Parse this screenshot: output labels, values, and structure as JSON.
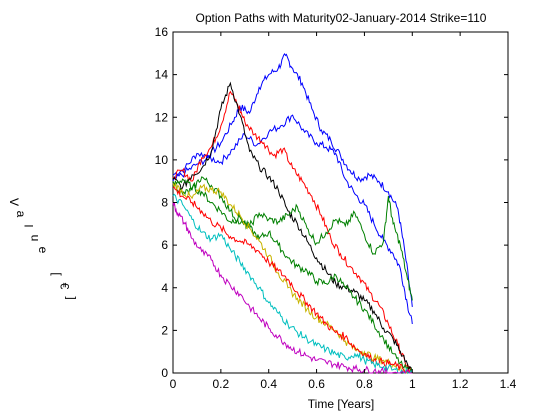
{
  "chart_data": {
    "type": "line",
    "title": "Option Paths with Maturity02-January-2014 Strike=110",
    "xlabel": "Time [Years]",
    "ylabel": "Value [€]",
    "xlim": [
      0,
      1.4
    ],
    "ylim": [
      0,
      16
    ],
    "x_ticks": [
      "0",
      "0.2",
      "0.4",
      "0.6",
      "0.8",
      "1",
      "1.2",
      "1.4"
    ],
    "y_ticks": [
      "0",
      "2",
      "4",
      "6",
      "8",
      "10",
      "12",
      "14",
      "16"
    ],
    "grid": false,
    "series": [
      {
        "color": "#0000ff",
        "points": [
          [
            0,
            9.3
          ],
          [
            0.05,
            9.6
          ],
          [
            0.1,
            10.3
          ],
          [
            0.15,
            10.2
          ],
          [
            0.2,
            10.8
          ],
          [
            0.25,
            11.8
          ],
          [
            0.28,
            12.5
          ],
          [
            0.32,
            12.2
          ],
          [
            0.36,
            13.4
          ],
          [
            0.4,
            14.0
          ],
          [
            0.44,
            14.3
          ],
          [
            0.47,
            14.9
          ],
          [
            0.5,
            14.3
          ],
          [
            0.54,
            13.6
          ],
          [
            0.58,
            12.4
          ],
          [
            0.62,
            11.4
          ],
          [
            0.66,
            10.9
          ],
          [
            0.7,
            10.2
          ],
          [
            0.74,
            9.5
          ],
          [
            0.78,
            9.1
          ],
          [
            0.82,
            9.3
          ],
          [
            0.86,
            9.0
          ],
          [
            0.9,
            8.5
          ],
          [
            0.94,
            7.7
          ],
          [
            0.97,
            5.6
          ],
          [
            1.0,
            3.1
          ]
        ]
      },
      {
        "color": "#0000ff",
        "points": [
          [
            0,
            9.0
          ],
          [
            0.05,
            9.4
          ],
          [
            0.1,
            9.8
          ],
          [
            0.15,
            10.1
          ],
          [
            0.2,
            9.9
          ],
          [
            0.25,
            10.5
          ],
          [
            0.3,
            11.2
          ],
          [
            0.35,
            10.7
          ],
          [
            0.4,
            11.3
          ],
          [
            0.45,
            11.6
          ],
          [
            0.5,
            12.1
          ],
          [
            0.55,
            11.3
          ],
          [
            0.6,
            10.8
          ],
          [
            0.64,
            10.6
          ],
          [
            0.68,
            10.3
          ],
          [
            0.72,
            9.1
          ],
          [
            0.76,
            8.4
          ],
          [
            0.8,
            7.9
          ],
          [
            0.84,
            7.0
          ],
          [
            0.88,
            6.2
          ],
          [
            0.92,
            5.6
          ],
          [
            0.95,
            4.9
          ],
          [
            0.98,
            3.2
          ],
          [
            1.0,
            2.3
          ]
        ]
      },
      {
        "color": "#ff0000",
        "points": [
          [
            0,
            9.2
          ],
          [
            0.04,
            9.5
          ],
          [
            0.08,
            9.0
          ],
          [
            0.12,
            10.1
          ],
          [
            0.16,
            10.6
          ],
          [
            0.2,
            11.6
          ],
          [
            0.24,
            13.2
          ],
          [
            0.27,
            12.6
          ],
          [
            0.3,
            11.8
          ],
          [
            0.34,
            11.2
          ],
          [
            0.38,
            10.8
          ],
          [
            0.42,
            10.2
          ],
          [
            0.46,
            10.5
          ],
          [
            0.5,
            9.6
          ],
          [
            0.54,
            9.0
          ],
          [
            0.58,
            8.3
          ],
          [
            0.62,
            7.4
          ],
          [
            0.66,
            6.3
          ],
          [
            0.7,
            5.6
          ],
          [
            0.74,
            5.0
          ],
          [
            0.78,
            4.5
          ],
          [
            0.82,
            3.8
          ],
          [
            0.86,
            3.2
          ],
          [
            0.9,
            2.3
          ],
          [
            0.94,
            1.3
          ],
          [
            0.97,
            0.5
          ],
          [
            1.0,
            0.0
          ]
        ]
      },
      {
        "color": "#000000",
        "points": [
          [
            0,
            9.1
          ],
          [
            0.04,
            8.7
          ],
          [
            0.08,
            9.3
          ],
          [
            0.12,
            9.6
          ],
          [
            0.16,
            10.4
          ],
          [
            0.2,
            12.4
          ],
          [
            0.24,
            13.6
          ],
          [
            0.28,
            12.1
          ],
          [
            0.32,
            10.4
          ],
          [
            0.36,
            9.7
          ],
          [
            0.4,
            9.2
          ],
          [
            0.44,
            8.6
          ],
          [
            0.48,
            7.6
          ],
          [
            0.52,
            7.0
          ],
          [
            0.56,
            6.2
          ],
          [
            0.6,
            5.4
          ],
          [
            0.64,
            4.8
          ],
          [
            0.68,
            4.2
          ],
          [
            0.72,
            4.0
          ],
          [
            0.76,
            3.8
          ],
          [
            0.8,
            3.4
          ],
          [
            0.84,
            2.9
          ],
          [
            0.88,
            2.1
          ],
          [
            0.92,
            1.6
          ],
          [
            0.96,
            0.8
          ],
          [
            1.0,
            0.0
          ]
        ]
      },
      {
        "color": "#008000",
        "points": [
          [
            0,
            8.8
          ],
          [
            0.04,
            9.1
          ],
          [
            0.08,
            8.7
          ],
          [
            0.12,
            8.5
          ],
          [
            0.16,
            8.0
          ],
          [
            0.2,
            7.6
          ],
          [
            0.24,
            7.1
          ],
          [
            0.28,
            7.3
          ],
          [
            0.32,
            6.8
          ],
          [
            0.36,
            6.3
          ],
          [
            0.4,
            6.6
          ],
          [
            0.44,
            6.0
          ],
          [
            0.48,
            5.4
          ],
          [
            0.52,
            5.0
          ],
          [
            0.56,
            4.8
          ],
          [
            0.6,
            4.3
          ],
          [
            0.64,
            4.2
          ],
          [
            0.68,
            4.6
          ],
          [
            0.72,
            4.0
          ],
          [
            0.76,
            3.5
          ],
          [
            0.8,
            3.0
          ],
          [
            0.84,
            2.3
          ],
          [
            0.88,
            1.6
          ],
          [
            0.92,
            0.9
          ],
          [
            0.96,
            0.3
          ],
          [
            1.0,
            0.0
          ]
        ]
      },
      {
        "color": "#008000",
        "points": [
          [
            0,
            9.0
          ],
          [
            0.04,
            8.4
          ],
          [
            0.08,
            8.6
          ],
          [
            0.12,
            9.2
          ],
          [
            0.16,
            8.8
          ],
          [
            0.2,
            8.3
          ],
          [
            0.24,
            7.6
          ],
          [
            0.28,
            7.0
          ],
          [
            0.32,
            6.9
          ],
          [
            0.36,
            7.5
          ],
          [
            0.4,
            7.2
          ],
          [
            0.44,
            7.1
          ],
          [
            0.48,
            7.4
          ],
          [
            0.52,
            7.8
          ],
          [
            0.56,
            6.8
          ],
          [
            0.6,
            6.1
          ],
          [
            0.64,
            6.6
          ],
          [
            0.68,
            7.2
          ],
          [
            0.72,
            6.9
          ],
          [
            0.76,
            7.5
          ],
          [
            0.8,
            6.5
          ],
          [
            0.84,
            5.6
          ],
          [
            0.88,
            6.2
          ],
          [
            0.9,
            8.3
          ],
          [
            0.92,
            7.0
          ],
          [
            0.95,
            6.0
          ],
          [
            0.98,
            4.4
          ],
          [
            1.0,
            3.4
          ]
        ]
      },
      {
        "color": "#c8b400",
        "points": [
          [
            0,
            8.9
          ],
          [
            0.04,
            8.5
          ],
          [
            0.08,
            8.2
          ],
          [
            0.12,
            8.7
          ],
          [
            0.16,
            8.6
          ],
          [
            0.2,
            8.5
          ],
          [
            0.24,
            7.9
          ],
          [
            0.28,
            7.4
          ],
          [
            0.32,
            6.8
          ],
          [
            0.36,
            6.2
          ],
          [
            0.4,
            5.5
          ],
          [
            0.44,
            4.7
          ],
          [
            0.48,
            4.0
          ],
          [
            0.52,
            3.5
          ],
          [
            0.56,
            3.0
          ],
          [
            0.6,
            2.6
          ],
          [
            0.64,
            2.3
          ],
          [
            0.68,
            2.0
          ],
          [
            0.72,
            1.5
          ],
          [
            0.76,
            1.1
          ],
          [
            0.8,
            1.0
          ],
          [
            0.84,
            0.7
          ],
          [
            0.88,
            0.6
          ],
          [
            0.92,
            0.4
          ],
          [
            0.96,
            0.1
          ],
          [
            1.0,
            0.0
          ]
        ]
      },
      {
        "color": "#ff0000",
        "points": [
          [
            0,
            8.7
          ],
          [
            0.04,
            8.3
          ],
          [
            0.08,
            8.0
          ],
          [
            0.12,
            7.6
          ],
          [
            0.16,
            7.1
          ],
          [
            0.2,
            6.8
          ],
          [
            0.24,
            6.4
          ],
          [
            0.28,
            6.2
          ],
          [
            0.32,
            6.0
          ],
          [
            0.36,
            5.7
          ],
          [
            0.4,
            5.2
          ],
          [
            0.44,
            4.8
          ],
          [
            0.48,
            4.4
          ],
          [
            0.52,
            3.8
          ],
          [
            0.56,
            3.3
          ],
          [
            0.6,
            2.8
          ],
          [
            0.64,
            2.3
          ],
          [
            0.68,
            1.9
          ],
          [
            0.72,
            1.7
          ],
          [
            0.76,
            1.2
          ],
          [
            0.8,
            0.9
          ],
          [
            0.84,
            0.6
          ],
          [
            0.88,
            0.5
          ],
          [
            0.92,
            0.4
          ],
          [
            0.96,
            0.2
          ],
          [
            1.0,
            0.0
          ]
        ]
      },
      {
        "color": "#00bfbf",
        "points": [
          [
            0,
            8.3
          ],
          [
            0.04,
            7.9
          ],
          [
            0.08,
            7.2
          ],
          [
            0.12,
            6.6
          ],
          [
            0.16,
            6.3
          ],
          [
            0.2,
            6.5
          ],
          [
            0.24,
            5.8
          ],
          [
            0.28,
            5.2
          ],
          [
            0.32,
            4.6
          ],
          [
            0.36,
            4.0
          ],
          [
            0.4,
            3.3
          ],
          [
            0.44,
            2.8
          ],
          [
            0.48,
            2.3
          ],
          [
            0.52,
            1.9
          ],
          [
            0.56,
            1.6
          ],
          [
            0.6,
            1.3
          ],
          [
            0.64,
            1.1
          ],
          [
            0.68,
            0.9
          ],
          [
            0.72,
            0.7
          ],
          [
            0.76,
            0.9
          ],
          [
            0.8,
            0.6
          ],
          [
            0.84,
            0.4
          ],
          [
            0.88,
            0.3
          ],
          [
            0.92,
            0.15
          ],
          [
            0.96,
            0.05
          ],
          [
            1.0,
            0.0
          ]
        ]
      },
      {
        "color": "#bf00bf",
        "points": [
          [
            0,
            8.0
          ],
          [
            0.02,
            7.5
          ],
          [
            0.05,
            7.0
          ],
          [
            0.08,
            6.3
          ],
          [
            0.12,
            5.7
          ],
          [
            0.16,
            5.3
          ],
          [
            0.2,
            4.6
          ],
          [
            0.24,
            4.1
          ],
          [
            0.28,
            3.7
          ],
          [
            0.32,
            3.1
          ],
          [
            0.36,
            2.6
          ],
          [
            0.4,
            2.1
          ],
          [
            0.44,
            1.7
          ],
          [
            0.48,
            1.3
          ],
          [
            0.52,
            1.0
          ],
          [
            0.56,
            0.8
          ],
          [
            0.6,
            0.6
          ],
          [
            0.64,
            0.5
          ],
          [
            0.68,
            0.4
          ],
          [
            0.72,
            0.3
          ],
          [
            0.76,
            0.2
          ],
          [
            0.8,
            0.15
          ],
          [
            0.84,
            0.1
          ],
          [
            0.88,
            0.05
          ],
          [
            0.92,
            0.02
          ],
          [
            1.0,
            0.0
          ]
        ]
      }
    ]
  }
}
